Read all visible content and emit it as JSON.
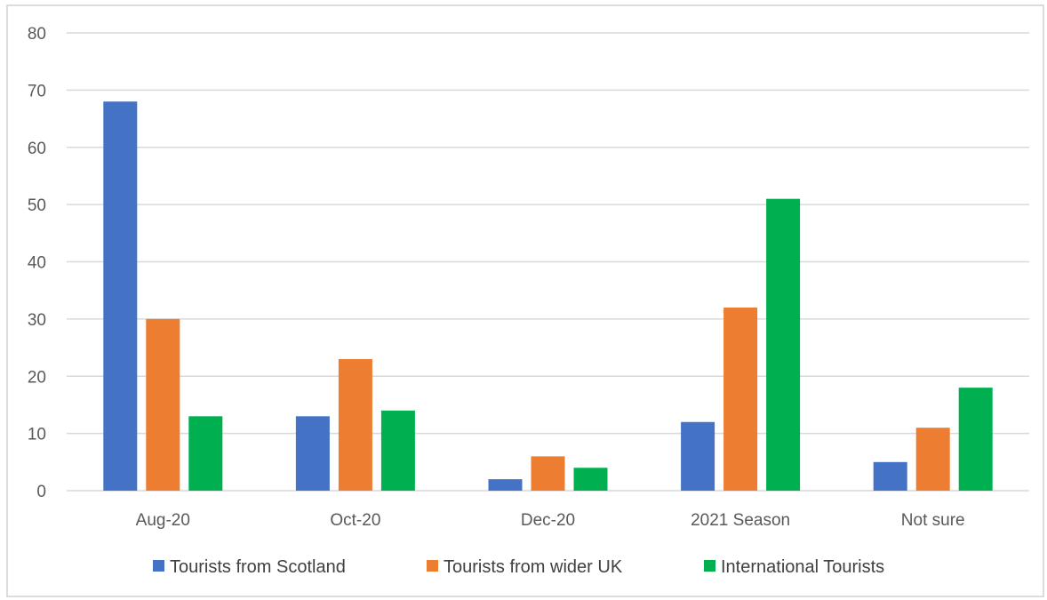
{
  "chart_data": {
    "type": "bar",
    "title": "",
    "xlabel": "",
    "ylabel": "",
    "categories": [
      "Aug-20",
      "Oct-20",
      "Dec-20",
      "2021 Season",
      "Not sure"
    ],
    "series": [
      {
        "name": "Tourists from Scotland",
        "color": "#4472c4",
        "values": [
          68,
          13,
          2,
          12,
          5
        ]
      },
      {
        "name": "Tourists from wider UK",
        "color": "#ed7d31",
        "values": [
          30,
          23,
          6,
          32,
          11
        ]
      },
      {
        "name": "International Tourists",
        "color": "#00b050",
        "values": [
          13,
          14,
          4,
          51,
          18
        ]
      }
    ],
    "ylim": [
      0,
      80
    ],
    "yticks": [
      "0",
      "10",
      "20",
      "30",
      "40",
      "50",
      "60",
      "70",
      "80"
    ],
    "grid": true,
    "legend": "bottom"
  }
}
